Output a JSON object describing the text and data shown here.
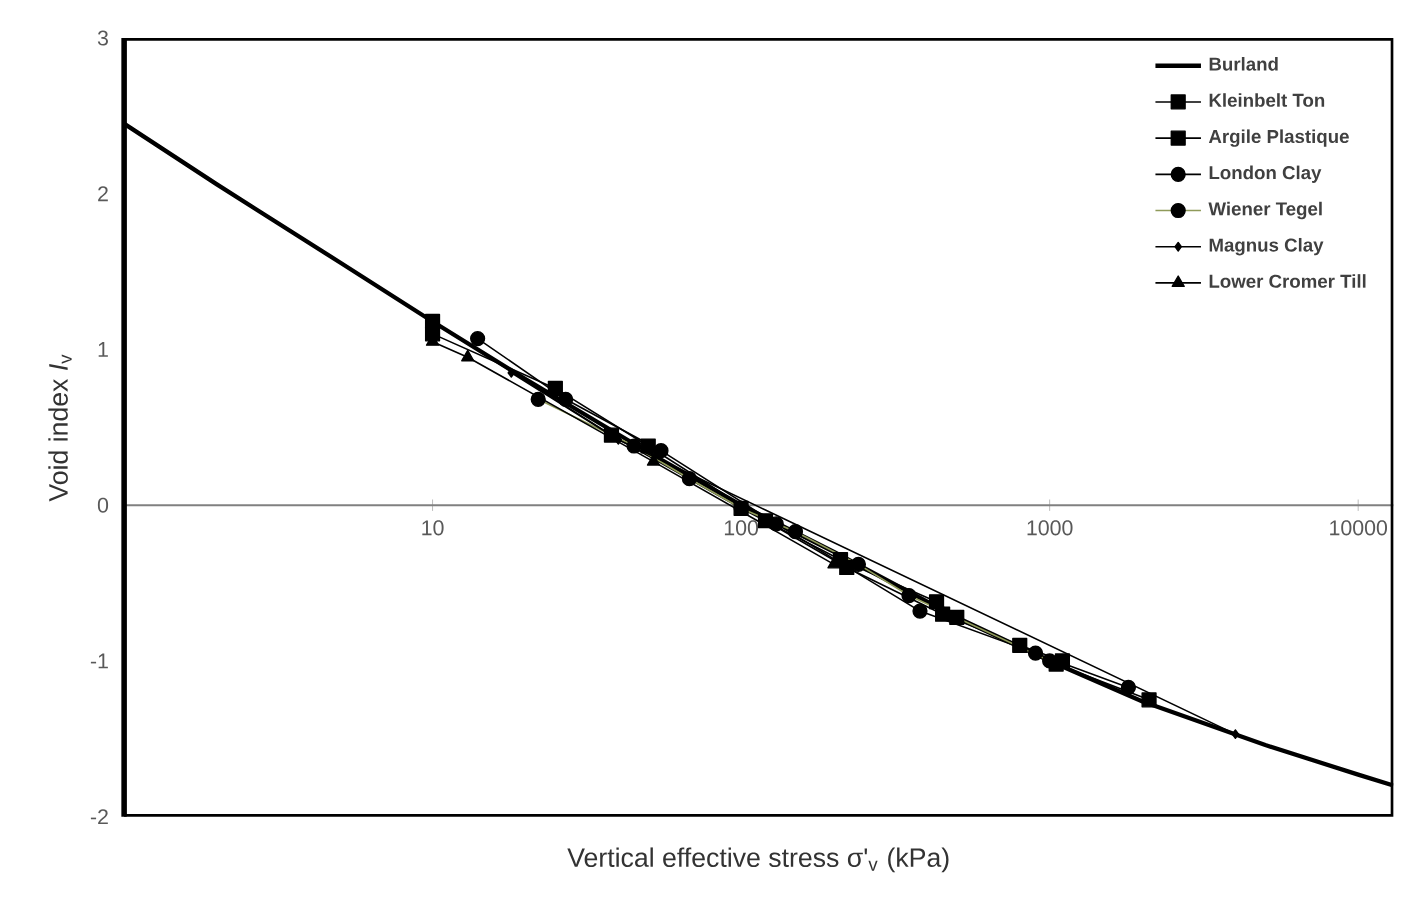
{
  "chart_data": {
    "type": "line",
    "xlabel": "Vertical effective stress  σ'$_{v}$ (kPa)",
    "ylabel": "Void index *I*$_{v}$",
    "log": "x",
    "xlim": [
      1,
      13000
    ],
    "ylim": [
      -2,
      3
    ],
    "xticks": [
      10,
      100,
      1000,
      10000
    ],
    "yticks": [
      -2,
      -1,
      0,
      1,
      2,
      3
    ],
    "grid": false,
    "legend": "top right",
    "series": [
      {
        "name": "Burland",
        "color": "#000000",
        "marker": "none",
        "x": [
          1,
          2,
          5,
          10,
          20,
          50,
          100,
          200,
          500,
          1000,
          2000,
          5000,
          10000,
          13000
        ],
        "values": [
          2.45,
          2.06,
          1.56,
          1.18,
          0.81,
          0.34,
          0.0,
          -0.3,
          -0.72,
          -1.0,
          -1.26,
          -1.54,
          -1.73,
          -1.8
        ]
      },
      {
        "name": "Kleinbelt Ton",
        "color": "#000000",
        "marker": "square",
        "x": [
          10,
          25,
          50,
          120,
          220,
          450,
          800,
          1100
        ],
        "values": [
          1.1,
          0.75,
          0.38,
          -0.1,
          -0.4,
          -0.7,
          -0.9,
          -1.0
        ]
      },
      {
        "name": "Argile Plastique",
        "color": "#000000",
        "marker": "square",
        "x": [
          10,
          38,
          100,
          210,
          430,
          500,
          1050,
          2100
        ],
        "values": [
          1.18,
          0.45,
          -0.02,
          -0.35,
          -0.62,
          -0.72,
          -1.02,
          -1.25
        ]
      },
      {
        "name": "London Clay",
        "color": "#000000",
        "marker": "circle",
        "x": [
          14,
          27,
          55,
          130,
          380,
          900,
          1800
        ],
        "values": [
          1.07,
          0.68,
          0.35,
          -0.12,
          -0.68,
          -0.95,
          -1.17
        ]
      },
      {
        "name": "Wiener Tegel",
        "color": "#8f9a5a",
        "marker": "circle",
        "x": [
          22,
          45,
          68,
          100,
          150,
          240,
          350,
          1000
        ],
        "values": [
          0.68,
          0.38,
          0.17,
          -0.02,
          -0.17,
          -0.38,
          -0.58,
          -1.0
        ]
      },
      {
        "name": "Magnus Clay",
        "color": "#000000",
        "marker": "diamond",
        "x": [
          18,
          40,
          4000
        ],
        "values": [
          0.85,
          0.42,
          -1.47
        ]
      },
      {
        "name": "Lower Cromer Till",
        "color": "#000000",
        "marker": "triangle",
        "x": [
          10,
          13,
          52,
          200
        ],
        "values": [
          1.05,
          0.95,
          0.28,
          -0.38
        ]
      }
    ]
  }
}
